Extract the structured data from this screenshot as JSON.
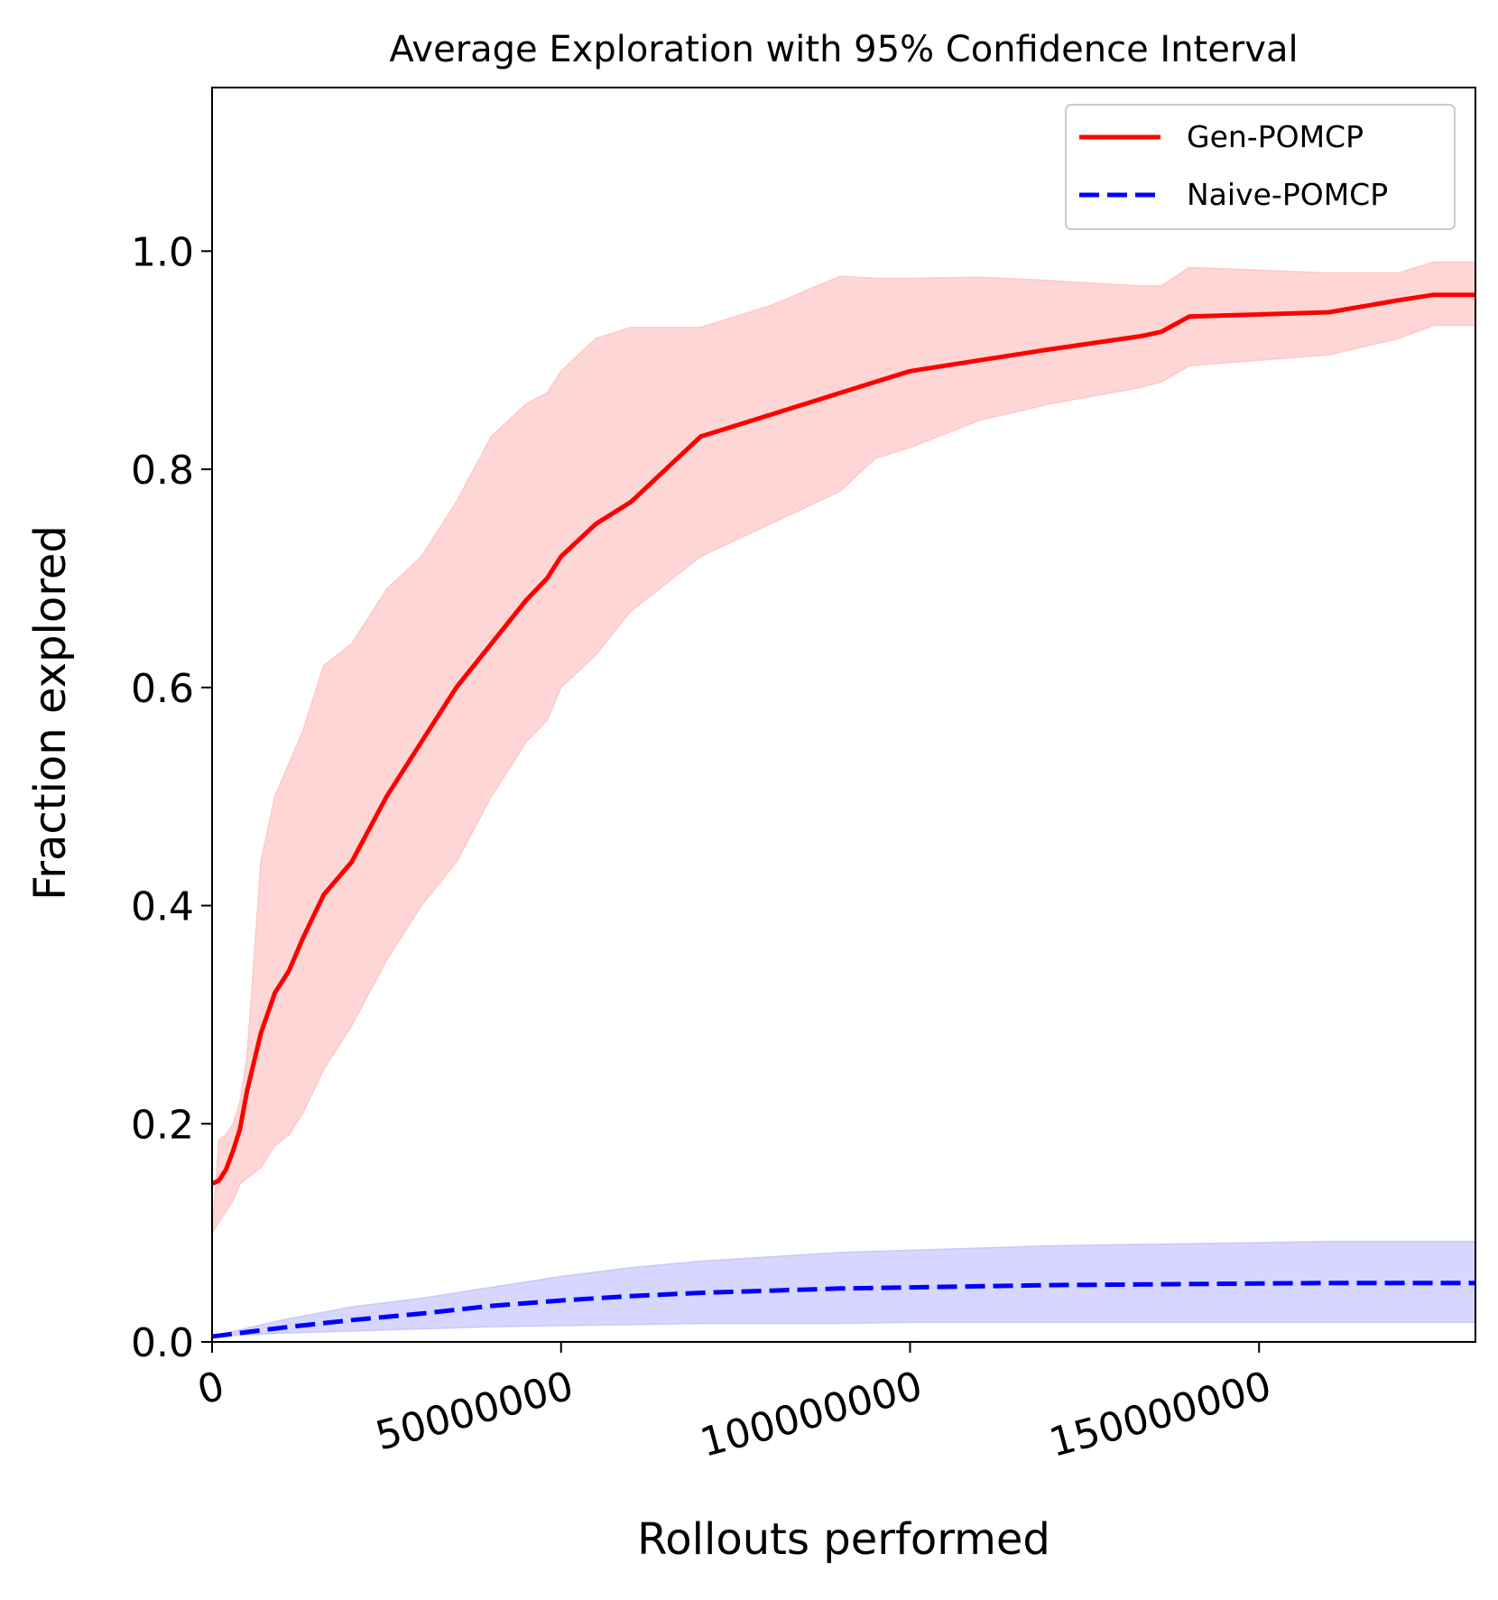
{
  "chart_data": {
    "type": "line",
    "title": "Average Exploration with 95% Confidence Interval",
    "xlabel": "Rollouts performed",
    "ylabel": "Fraction explored",
    "xlim": [
      0,
      181000000
    ],
    "ylim": [
      0,
      1.15
    ],
    "x_ticks": [
      0,
      50000000,
      100000000,
      150000000
    ],
    "x_tick_labels": [
      "0",
      "50000000",
      "100000000",
      "150000000"
    ],
    "y_ticks": [
      0.0,
      0.2,
      0.4,
      0.6,
      0.8,
      1.0
    ],
    "y_tick_labels": [
      "0.0",
      "0.2",
      "0.4",
      "0.6",
      "0.8",
      "1.0"
    ],
    "grid": false,
    "legend_position": "top-right",
    "series": [
      {
        "name": "Gen-POMCP",
        "color": "#ff0000",
        "band_color": "#ffc8c8",
        "line_style": "solid",
        "x": [
          0,
          1000000,
          2000000,
          3000000,
          4000000,
          5000000,
          7000000,
          9000000,
          11000000,
          13000000,
          16000000,
          20000000,
          25000000,
          30000000,
          35000000,
          40000000,
          45000000,
          48000000,
          50000000,
          55000000,
          60000000,
          70000000,
          80000000,
          90000000,
          95000000,
          100000000,
          110000000,
          120000000,
          133000000,
          136000000,
          140000000,
          160000000,
          170000000,
          175000000,
          181000000
        ],
        "values": [
          0.145,
          0.148,
          0.158,
          0.175,
          0.195,
          0.23,
          0.283,
          0.32,
          0.34,
          0.37,
          0.41,
          0.44,
          0.5,
          0.55,
          0.6,
          0.64,
          0.68,
          0.7,
          0.72,
          0.75,
          0.77,
          0.83,
          0.85,
          0.87,
          0.88,
          0.89,
          0.9,
          0.91,
          0.922,
          0.926,
          0.94,
          0.944,
          0.955,
          0.96,
          0.96
        ],
        "upper": [
          0.1,
          0.185,
          0.19,
          0.2,
          0.22,
          0.26,
          0.44,
          0.5,
          0.53,
          0.56,
          0.62,
          0.64,
          0.69,
          0.72,
          0.77,
          0.83,
          0.86,
          0.87,
          0.89,
          0.92,
          0.93,
          0.93,
          0.95,
          0.977,
          0.975,
          0.975,
          0.976,
          0.973,
          0.968,
          0.968,
          0.985,
          0.98,
          0.98,
          0.99,
          0.99
        ],
        "lower": [
          0.1,
          0.11,
          0.12,
          0.13,
          0.145,
          0.15,
          0.16,
          0.18,
          0.19,
          0.21,
          0.25,
          0.29,
          0.35,
          0.4,
          0.44,
          0.5,
          0.55,
          0.57,
          0.6,
          0.63,
          0.67,
          0.72,
          0.75,
          0.78,
          0.81,
          0.82,
          0.845,
          0.86,
          0.875,
          0.88,
          0.895,
          0.905,
          0.92,
          0.932,
          0.932
        ]
      },
      {
        "name": "Naive-POMCP",
        "color": "#0000ff",
        "band_color": "#c8c8ff",
        "line_style": "dashed",
        "x": [
          0,
          10000000,
          20000000,
          30000000,
          40000000,
          50000000,
          60000000,
          70000000,
          80000000,
          90000000,
          100000000,
          120000000,
          140000000,
          160000000,
          181000000
        ],
        "values": [
          0.005,
          0.013,
          0.02,
          0.026,
          0.033,
          0.038,
          0.042,
          0.045,
          0.047,
          0.049,
          0.05,
          0.052,
          0.053,
          0.054,
          0.054
        ],
        "upper": [
          0.005,
          0.02,
          0.032,
          0.04,
          0.05,
          0.06,
          0.068,
          0.074,
          0.078,
          0.082,
          0.084,
          0.088,
          0.09,
          0.092,
          0.092
        ],
        "lower": [
          0.005,
          0.008,
          0.01,
          0.012,
          0.014,
          0.015,
          0.016,
          0.017,
          0.017,
          0.017,
          0.018,
          0.018,
          0.018,
          0.018,
          0.018
        ]
      }
    ]
  }
}
